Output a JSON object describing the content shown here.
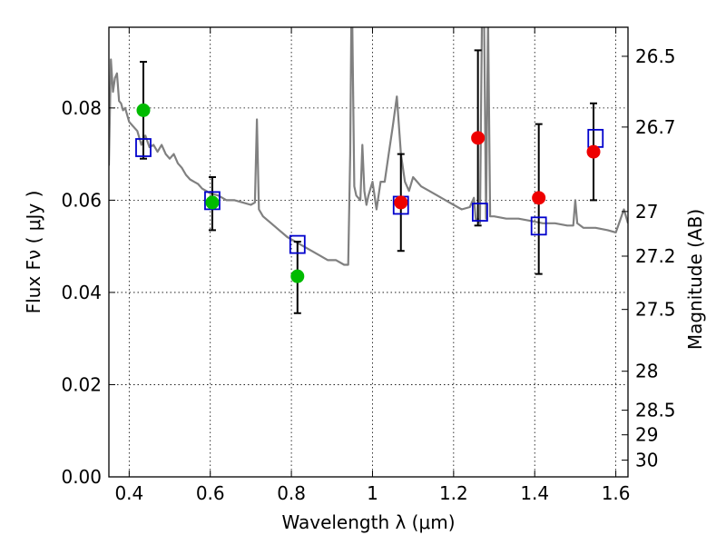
{
  "chart_data": {
    "type": "scatter",
    "title": "",
    "xlabel": "Wavelength  λ (μm)",
    "ylabel": "Flux  Fν  ( μJy )",
    "ylabel_right": "Magnitude (AB)",
    "xlim": [
      0.35,
      1.63
    ],
    "ylim": [
      0.0,
      0.0975
    ],
    "grid": true,
    "x_ticks": [
      0.4,
      0.6,
      0.8,
      1.0,
      1.2,
      1.4,
      1.6
    ],
    "x_tick_labels": [
      "0.4",
      "0.6",
      "0.8",
      "1",
      "1.2",
      "1.4",
      "1.6"
    ],
    "y_ticks": [
      0.0,
      0.02,
      0.04,
      0.06,
      0.08
    ],
    "y_tick_labels": [
      "0.00",
      "0.02",
      "0.04",
      "0.06",
      "0.08"
    ],
    "right_axis": {
      "labels": [
        "26.5",
        "26.7",
        "27",
        "27.2",
        "27.5",
        "28",
        "28.5",
        "29",
        "30"
      ],
      "magnitudes": [
        26.5,
        26.7,
        27.0,
        27.2,
        27.5,
        28.0,
        28.5,
        29.0,
        30.0
      ]
    },
    "series": [
      {
        "kind": "line",
        "color": "#808080",
        "x": [
          0.35,
          0.355,
          0.36,
          0.365,
          0.37,
          0.375,
          0.38,
          0.385,
          0.39,
          0.4,
          0.41,
          0.42,
          0.43,
          0.44,
          0.45,
          0.46,
          0.47,
          0.48,
          0.49,
          0.5,
          0.51,
          0.52,
          0.53,
          0.54,
          0.55,
          0.56,
          0.57,
          0.58,
          0.59,
          0.6,
          0.62,
          0.64,
          0.66,
          0.68,
          0.7,
          0.71,
          0.715,
          0.72,
          0.73,
          0.75,
          0.77,
          0.79,
          0.81,
          0.83,
          0.85,
          0.87,
          0.89,
          0.91,
          0.93,
          0.94,
          0.945,
          0.948,
          0.95,
          0.955,
          0.96,
          0.97,
          0.975,
          0.98,
          0.985,
          0.99,
          1.0,
          1.01,
          1.02,
          1.03,
          1.04,
          1.05,
          1.06,
          1.07,
          1.08,
          1.09,
          1.1,
          1.12,
          1.14,
          1.16,
          1.18,
          1.2,
          1.22,
          1.24,
          1.25,
          1.255,
          1.26,
          1.265,
          1.27,
          1.275,
          1.28,
          1.285,
          1.29,
          1.3,
          1.33,
          1.36,
          1.39,
          1.42,
          1.45,
          1.48,
          1.495,
          1.5,
          1.505,
          1.52,
          1.55,
          1.58,
          1.6,
          1.62,
          1.63
        ],
        "y": [
          0.0675,
          0.0905,
          0.0835,
          0.0865,
          0.0875,
          0.0815,
          0.081,
          0.0795,
          0.08,
          0.077,
          0.076,
          0.075,
          0.072,
          0.074,
          0.0715,
          0.072,
          0.0705,
          0.072,
          0.07,
          0.069,
          0.07,
          0.068,
          0.067,
          0.0655,
          0.0645,
          0.064,
          0.0635,
          0.0625,
          0.062,
          0.0615,
          0.061,
          0.06,
          0.06,
          0.0595,
          0.059,
          0.0595,
          0.0775,
          0.058,
          0.0565,
          0.055,
          0.0535,
          0.052,
          0.051,
          0.05,
          0.049,
          0.048,
          0.047,
          0.047,
          0.046,
          0.046,
          0.07,
          0.1,
          0.1,
          0.063,
          0.061,
          0.06,
          0.072,
          0.062,
          0.059,
          0.061,
          0.064,
          0.058,
          0.064,
          0.064,
          0.07,
          0.076,
          0.0825,
          0.07,
          0.064,
          0.062,
          0.065,
          0.063,
          0.062,
          0.061,
          0.06,
          0.059,
          0.058,
          0.0585,
          0.0605,
          0.0555,
          0.056,
          0.055,
          0.1,
          0.1,
          0.056,
          0.1,
          0.0565,
          0.0565,
          0.056,
          0.056,
          0.0555,
          0.055,
          0.055,
          0.0545,
          0.0545,
          0.06,
          0.055,
          0.054,
          0.054,
          0.0535,
          0.053,
          0.058,
          0.055
        ]
      },
      {
        "kind": "model_points",
        "marker": "open-square",
        "color": "#0000cc",
        "x": [
          0.435,
          0.605,
          0.815,
          1.07,
          1.265,
          1.41,
          1.55
        ],
        "y": [
          0.0715,
          0.06,
          0.0505,
          0.059,
          0.0575,
          0.0545,
          0.0735
        ]
      },
      {
        "kind": "observed",
        "marker": "filled-circle",
        "color": "#00bb00",
        "x": [
          0.435,
          0.605,
          0.815
        ],
        "y": [
          0.0795,
          0.0595,
          0.0435
        ],
        "yerr_low": [
          0.069,
          0.0535,
          0.0355
        ],
        "yerr_high": [
          0.09,
          0.065,
          0.051
        ]
      },
      {
        "kind": "observed",
        "marker": "filled-circle",
        "color": "#ee0000",
        "x": [
          1.07,
          1.26,
          1.41,
          1.545
        ],
        "y": [
          0.0595,
          0.0735,
          0.0605,
          0.0705
        ],
        "yerr_low": [
          0.049,
          0.0545,
          0.044,
          0.06
        ],
        "yerr_high": [
          0.07,
          0.0925,
          0.0765,
          0.081
        ]
      }
    ]
  }
}
